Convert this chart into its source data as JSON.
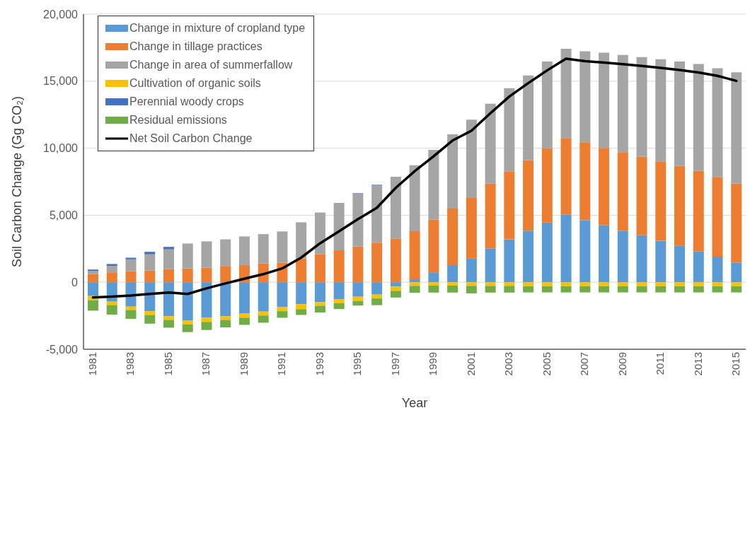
{
  "chart_data": {
    "type": "bar",
    "stacked": true,
    "xlabel": "Year",
    "ylabel": "Soil Carbon Change (Gg CO₂)",
    "categories": [
      "1981",
      null,
      "1983",
      null,
      "1985",
      null,
      "1987",
      null,
      "1989",
      null,
      "1991",
      null,
      "1993",
      null,
      "1995",
      null,
      "1997",
      null,
      "1999",
      null,
      "2001",
      null,
      "2003",
      null,
      "2005",
      null,
      "2007",
      null,
      "2009",
      null,
      "2011",
      null,
      "2013",
      null,
      "2015"
    ],
    "series": [
      {
        "name": "Change in mixture of cropland type",
        "color": "#5b9bd5",
        "values": [
          -1030,
          -1450,
          -1820,
          -2160,
          -2530,
          -2870,
          -2650,
          -2530,
          -2340,
          -2190,
          -1860,
          -1640,
          -1490,
          -1260,
          -1080,
          -920,
          -330,
          220,
          740,
          1280,
          1770,
          2520,
          3200,
          3850,
          4450,
          5030,
          4630,
          4260,
          3850,
          3500,
          3090,
          2720,
          2310,
          1910,
          1470
        ]
      },
      {
        "name": "Change in tillage practices",
        "color": "#ed7d31",
        "values": [
          600,
          740,
          820,
          870,
          970,
          1030,
          1090,
          1210,
          1280,
          1400,
          1460,
          1770,
          2080,
          2390,
          2660,
          2950,
          3260,
          3590,
          3940,
          4210,
          4520,
          4830,
          5080,
          5260,
          5540,
          5730,
          5810,
          5760,
          5850,
          5860,
          5920,
          5950,
          6000,
          5950,
          5880
        ]
      },
      {
        "name": "Change in area of summerfallow",
        "color": "#a5a5a5",
        "values": [
          230,
          470,
          890,
          1210,
          1480,
          1860,
          1960,
          1990,
          2140,
          2190,
          2330,
          2700,
          3120,
          3530,
          3930,
          4270,
          4610,
          4920,
          5200,
          5550,
          5840,
          5970,
          6200,
          6320,
          6470,
          6660,
          6790,
          7100,
          7250,
          7440,
          7630,
          7790,
          7970,
          8110,
          8310
        ]
      },
      {
        "name": "Cultivation of organic soils",
        "color": "#ffc000",
        "values": [
          -310,
          -250,
          -250,
          -280,
          -280,
          -280,
          -310,
          -280,
          -310,
          -290,
          -300,
          -370,
          -270,
          -310,
          -310,
          -290,
          -310,
          -270,
          -250,
          -250,
          -270,
          -270,
          -270,
          -290,
          -290,
          -290,
          -290,
          -290,
          -290,
          -290,
          -290,
          -290,
          -290,
          -290,
          -290
        ]
      },
      {
        "name": "Perennial woody crops",
        "color": "#4472c4",
        "values": [
          120,
          150,
          120,
          190,
          190,
          null,
          null,
          null,
          null,
          null,
          null,
          null,
          null,
          null,
          50,
          50,
          null,
          null,
          null,
          null,
          null,
          null,
          null,
          null,
          null,
          null,
          null,
          null,
          null,
          null,
          null,
          null,
          null,
          null,
          null
        ]
      },
      {
        "name": "Residual emissions",
        "color": "#70ad47",
        "values": [
          -780,
          -720,
          -660,
          -650,
          -580,
          -570,
          -600,
          -560,
          -530,
          -540,
          -490,
          -430,
          -500,
          -430,
          -350,
          -500,
          -500,
          -520,
          -520,
          -520,
          -560,
          -500,
          -500,
          -470,
          -470,
          -470,
          -470,
          -470,
          -470,
          -470,
          -470,
          -470,
          -470,
          -470,
          -470
        ]
      },
      {
        "name": "Net Soil Carbon Change",
        "type": "line",
        "color": "#000000",
        "values": [
          -1140,
          -1070,
          -990,
          -870,
          -770,
          -870,
          -460,
          -90,
          260,
          600,
          1030,
          1830,
          2900,
          3800,
          4700,
          5550,
          7040,
          8280,
          9390,
          10570,
          11300,
          12600,
          13850,
          14850,
          15800,
          16680,
          16490,
          16390,
          16270,
          16140,
          15990,
          15830,
          15650,
          15400,
          15020
        ]
      }
    ],
    "ylim": [
      -5000,
      20000
    ],
    "yticks": [
      {
        "value": -5000,
        "label": "-5,000"
      },
      0,
      {
        "value": 5000,
        "label": "5,000"
      },
      {
        "value": 10000,
        "label": "10,000"
      },
      {
        "value": 15000,
        "label": "15,000"
      },
      {
        "value": 20000,
        "label": "20,000"
      }
    ],
    "grid": "y",
    "legend": "top left",
    "marker": "none",
    "line_style": "solid"
  }
}
